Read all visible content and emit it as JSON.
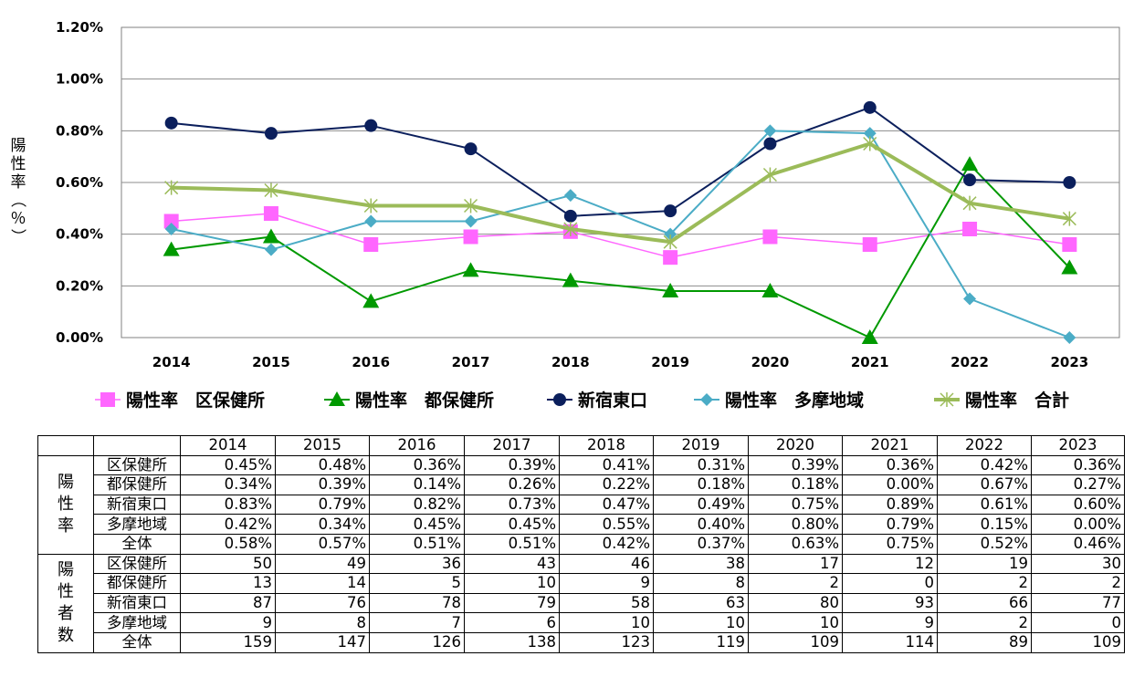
{
  "chart_data": {
    "type": "line",
    "categories": [
      "2014",
      "2015",
      "2016",
      "2017",
      "2018",
      "2019",
      "2020",
      "2021",
      "2022",
      "2023"
    ],
    "ylabel": "陽性率（％）",
    "ylim": [
      0,
      1.2
    ],
    "yticks": [
      "0.00%",
      "0.20%",
      "0.40%",
      "0.60%",
      "0.80%",
      "1.00%",
      "1.20%"
    ],
    "grid": true,
    "legend_position": "bottom",
    "series": [
      {
        "name": "陽性率　区保健所",
        "values": [
          0.45,
          0.48,
          0.36,
          0.39,
          0.41,
          0.31,
          0.39,
          0.36,
          0.42,
          0.36
        ],
        "color": "#ff66ff",
        "marker": "square",
        "stroke": 1.5
      },
      {
        "name": "陽性率　都保健所",
        "values": [
          0.34,
          0.39,
          0.14,
          0.26,
          0.22,
          0.18,
          0.18,
          0.0,
          0.67,
          0.27
        ],
        "color": "#009900",
        "marker": "triangle",
        "stroke": 2
      },
      {
        "name": "新宿東口",
        "values": [
          0.83,
          0.79,
          0.82,
          0.73,
          0.47,
          0.49,
          0.75,
          0.89,
          0.61,
          0.6
        ],
        "color": "#0b1f5c",
        "marker": "circle",
        "stroke": 2
      },
      {
        "name": "陽性率　多摩地域",
        "values": [
          0.42,
          0.34,
          0.45,
          0.45,
          0.55,
          0.4,
          0.8,
          0.79,
          0.15,
          0.0
        ],
        "color": "#4bacc6",
        "marker": "diamond",
        "stroke": 2
      },
      {
        "name": "陽性率　合計",
        "values": [
          0.58,
          0.57,
          0.51,
          0.51,
          0.42,
          0.37,
          0.63,
          0.75,
          0.52,
          0.46
        ],
        "color": "#9bbb59",
        "marker": "asterisk",
        "stroke": 4
      }
    ]
  },
  "table": {
    "years": [
      "2014",
      "2015",
      "2016",
      "2017",
      "2018",
      "2019",
      "2020",
      "2021",
      "2022",
      "2023"
    ],
    "groups": [
      {
        "label": "陽性率",
        "rows": [
          {
            "label": "区保健所",
            "values": [
              "0.45%",
              "0.48%",
              "0.36%",
              "0.39%",
              "0.41%",
              "0.31%",
              "0.39%",
              "0.36%",
              "0.42%",
              "0.36%"
            ]
          },
          {
            "label": "都保健所",
            "values": [
              "0.34%",
              "0.39%",
              "0.14%",
              "0.26%",
              "0.22%",
              "0.18%",
              "0.18%",
              "0.00%",
              "0.67%",
              "0.27%"
            ]
          },
          {
            "label": "新宿東口",
            "values": [
              "0.83%",
              "0.79%",
              "0.82%",
              "0.73%",
              "0.47%",
              "0.49%",
              "0.75%",
              "0.89%",
              "0.61%",
              "0.60%"
            ]
          },
          {
            "label": "多摩地域",
            "values": [
              "0.42%",
              "0.34%",
              "0.45%",
              "0.45%",
              "0.55%",
              "0.40%",
              "0.80%",
              "0.79%",
              "0.15%",
              "0.00%"
            ]
          },
          {
            "label": "全体",
            "values": [
              "0.58%",
              "0.57%",
              "0.51%",
              "0.51%",
              "0.42%",
              "0.37%",
              "0.63%",
              "0.75%",
              "0.52%",
              "0.46%"
            ]
          }
        ]
      },
      {
        "label": "陽性者数",
        "rows": [
          {
            "label": "区保健所",
            "values": [
              "50",
              "49",
              "36",
              "43",
              "46",
              "38",
              "17",
              "12",
              "19",
              "30"
            ]
          },
          {
            "label": "都保健所",
            "values": [
              "13",
              "14",
              "5",
              "10",
              "9",
              "8",
              "2",
              "0",
              "2",
              "2"
            ]
          },
          {
            "label": "新宿東口",
            "values": [
              "87",
              "76",
              "78",
              "79",
              "58",
              "63",
              "80",
              "93",
              "66",
              "77"
            ]
          },
          {
            "label": "多摩地域",
            "values": [
              "9",
              "8",
              "7",
              "6",
              "10",
              "10",
              "10",
              "9",
              "2",
              "0"
            ]
          },
          {
            "label": "全体",
            "values": [
              "159",
              "147",
              "126",
              "138",
              "123",
              "119",
              "109",
              "114",
              "89",
              "109"
            ]
          }
        ]
      }
    ]
  }
}
